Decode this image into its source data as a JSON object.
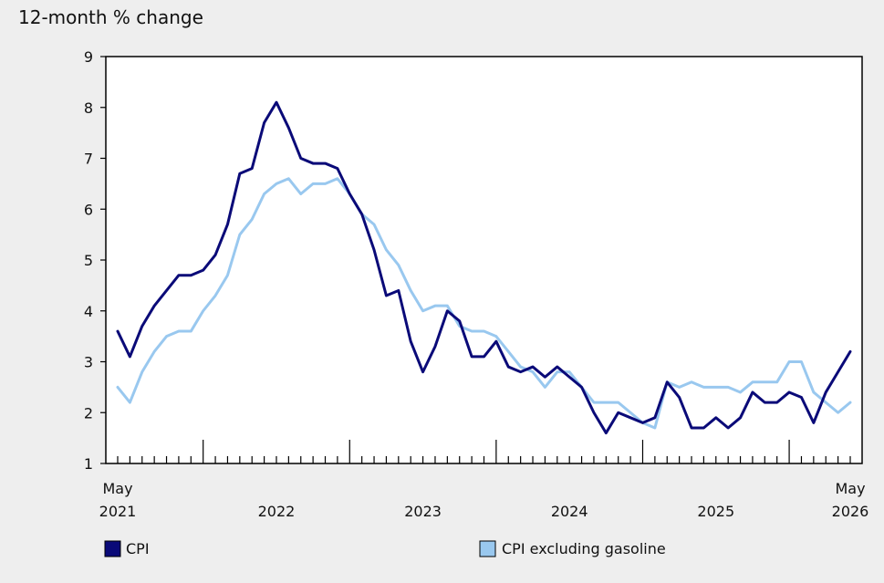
{
  "chart_data": {
    "type": "line",
    "title": "12-month % change",
    "ylim": [
      1,
      9
    ],
    "yticks": [
      1,
      2,
      3,
      4,
      5,
      6,
      7,
      8,
      9
    ],
    "x_start": "2021-05",
    "x_end": "2026-05",
    "x_labels": [
      {
        "month": "2021-05",
        "line1": "May",
        "line2": "2021"
      },
      {
        "month": "2022-06",
        "line1": "",
        "line2": "2022"
      },
      {
        "month": "2023-06",
        "line1": "",
        "line2": "2023"
      },
      {
        "month": "2024-06",
        "line1": "",
        "line2": "2024"
      },
      {
        "month": "2025-06",
        "line1": "",
        "line2": "2025"
      },
      {
        "month": "2026-05",
        "line1": "May",
        "line2": "2026"
      }
    ],
    "major_ticks": [
      "2021-12",
      "2022-12",
      "2023-12",
      "2024-12",
      "2025-12"
    ],
    "legend_placement": "bottom",
    "series": [
      {
        "name": "CPI",
        "color": "#0a0a78",
        "values": [
          3.6,
          3.1,
          3.7,
          4.1,
          4.4,
          4.7,
          4.7,
          4.8,
          5.1,
          5.7,
          6.7,
          6.8,
          7.7,
          8.1,
          7.6,
          7.0,
          6.9,
          6.9,
          6.8,
          6.3,
          5.9,
          5.2,
          4.3,
          4.4,
          3.4,
          2.8,
          3.3,
          4.0,
          3.8,
          3.1,
          3.1,
          3.4,
          2.9,
          2.8,
          2.9,
          2.7,
          2.9,
          2.7,
          2.5,
          2.0,
          1.6,
          2.0,
          1.9,
          1.8,
          1.9,
          2.6,
          2.3,
          1.7,
          1.7,
          1.9,
          1.7,
          1.9,
          2.4,
          2.2,
          2.2,
          2.4,
          2.3,
          1.8,
          2.4,
          2.8,
          3.2
        ]
      },
      {
        "name": "CPI excluding gasoline",
        "color": "#99c8ef",
        "values": [
          2.5,
          2.2,
          2.8,
          3.2,
          3.5,
          3.6,
          3.6,
          4.0,
          4.3,
          4.7,
          5.5,
          5.8,
          6.3,
          6.5,
          6.6,
          6.3,
          6.5,
          6.5,
          6.6,
          6.3,
          5.9,
          5.7,
          5.2,
          4.9,
          4.4,
          4.0,
          4.1,
          4.1,
          3.7,
          3.6,
          3.6,
          3.5,
          3.2,
          2.9,
          2.8,
          2.5,
          2.8,
          2.8,
          2.5,
          2.2,
          2.2,
          2.2,
          2.0,
          1.8,
          1.7,
          2.6,
          2.5,
          2.6,
          2.5,
          2.5,
          2.5,
          2.4,
          2.6,
          2.6,
          2.6,
          3.0,
          3.0,
          2.4,
          2.2,
          2.0,
          2.2
        ]
      }
    ]
  }
}
